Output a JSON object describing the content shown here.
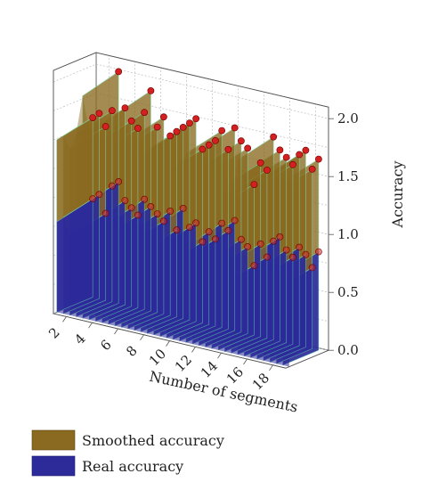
{
  "chart_data": {
    "type": "area",
    "title": "",
    "xlabel": "Number of segments",
    "zlabel": "Accuracy",
    "x_ticks": [
      "2",
      "4",
      "6",
      "8",
      "10",
      "12",
      "14",
      "16",
      "18"
    ],
    "z_ticks": [
      "0.0",
      "0.5",
      "1.0",
      "1.5",
      "2.0"
    ],
    "xlim": [
      1,
      19
    ],
    "zlim": [
      0,
      2.1
    ],
    "grid": true,
    "legend_position": "bottom-left",
    "x": [
      1,
      1.5,
      2,
      2.5,
      3,
      3.5,
      4,
      4.5,
      5,
      5.5,
      6,
      6.5,
      7,
      7.5,
      8,
      8.5,
      9,
      9.5,
      10,
      10.5,
      11,
      11.5,
      12,
      12.5,
      13,
      13.5,
      14,
      14.5,
      15,
      15.5,
      16,
      16.5,
      17,
      17.5,
      18,
      18.5
    ],
    "series": [
      {
        "name": "Smoothed accuracy",
        "color": "#8a6a20",
        "values": [
          1.55,
          1.6,
          1.5,
          1.65,
          2.0,
          1.7,
          1.6,
          1.55,
          1.7,
          1.9,
          1.6,
          1.7,
          1.55,
          1.6,
          1.65,
          1.7,
          1.75,
          1.5,
          1.55,
          1.6,
          1.7,
          1.55,
          1.75,
          1.65,
          1.6,
          1.3,
          1.5,
          1.45,
          1.75,
          1.65,
          1.6,
          1.55,
          1.65,
          1.7,
          1.55,
          1.65
        ]
      },
      {
        "name": "Real accuracy",
        "color": "#2d2a9a",
        "values": [
          0.85,
          0.9,
          0.75,
          1.0,
          1.05,
          0.9,
          0.85,
          0.8,
          0.95,
          0.9,
          0.85,
          0.8,
          0.9,
          0.75,
          0.95,
          0.8,
          0.85,
          0.7,
          0.8,
          0.75,
          0.9,
          0.85,
          0.95,
          0.8,
          0.75,
          0.6,
          0.8,
          0.7,
          0.85,
          0.9,
          0.8,
          0.75,
          0.85,
          0.8,
          0.7,
          0.85
        ]
      }
    ]
  }
}
